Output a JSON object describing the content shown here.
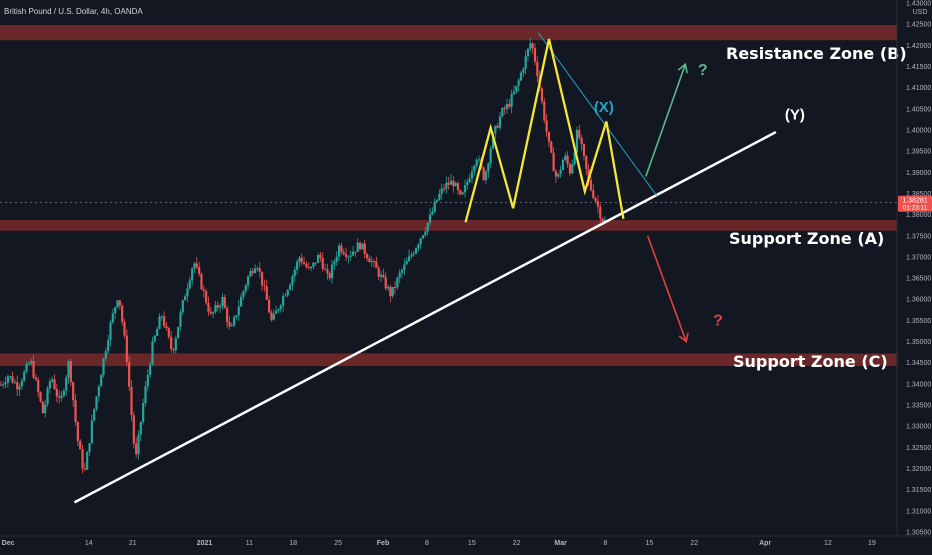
{
  "chart_data": {
    "type": "candlestick",
    "title": "British Pound / U.S. Dollar, 4h, OANDA",
    "y_unit": "USD",
    "ylim": [
      1.305,
      1.43
    ],
    "grid": false,
    "colors": {
      "background": "#131722",
      "up_candle": "#26a69a",
      "down_candle": "#ef5350",
      "zone_fill": "#7a2a2a",
      "pattern_line": "#f5e63a",
      "trend_line": "#ffffff",
      "wedge_line": "#22a5c8",
      "arrow_up": "#5ab88a",
      "arrow_down": "#e0413b",
      "price_tag": "#ef5350"
    },
    "y_ticks": [
      "1.43000",
      "1.42500",
      "1.42000",
      "1.41500",
      "1.41000",
      "1.40500",
      "1.40000",
      "1.39500",
      "1.39000",
      "1.38500",
      "1.38000",
      "1.37500",
      "1.37000",
      "1.36500",
      "1.36000",
      "1.35500",
      "1.35000",
      "1.34500",
      "1.34000",
      "1.33500",
      "1.33000",
      "1.32500",
      "1.32000",
      "1.31500",
      "1.31000",
      "1.30500"
    ],
    "y_tick_values": [
      1.43,
      1.425,
      1.42,
      1.415,
      1.41,
      1.405,
      1.4,
      1.395,
      1.39,
      1.385,
      1.38,
      1.375,
      1.37,
      1.365,
      1.36,
      1.355,
      1.35,
      1.345,
      1.34,
      1.335,
      1.33,
      1.325,
      1.32,
      1.315,
      1.31,
      1.305
    ],
    "x_ticks": [
      "Dec",
      "14",
      "21",
      "2021",
      "11",
      "18",
      "25",
      "Feb",
      "8",
      "15",
      "22",
      "Mar",
      "8",
      "15",
      "22",
      "Apr",
      "12",
      "19"
    ],
    "x_tick_pos": [
      0.009,
      0.099,
      0.148,
      0.228,
      0.278,
      0.327,
      0.377,
      0.427,
      0.476,
      0.526,
      0.576,
      0.625,
      0.675,
      0.724,
      0.774,
      0.853,
      0.923,
      0.972
    ],
    "current_price": "1.38281",
    "countdown": "01:23:11",
    "zones": [
      {
        "name": "Resistance Zone (B)",
        "from": 1.4212,
        "to": 1.4248
      },
      {
        "name": "Support Zone (A)",
        "from": 1.3762,
        "to": 1.3787
      },
      {
        "name": "Support Zone (C)",
        "from": 1.3442,
        "to": 1.3472
      }
    ],
    "annotations": {
      "wave_x": "(X)",
      "wave_y": "(Y)",
      "q_up": "?",
      "q_down": "?"
    },
    "price_path": [
      [
        0.0,
        1.3395
      ],
      [
        0.009,
        1.342
      ],
      [
        0.02,
        1.3395
      ],
      [
        0.034,
        1.3455
      ],
      [
        0.048,
        1.333
      ],
      [
        0.057,
        1.342
      ],
      [
        0.067,
        1.335
      ],
      [
        0.077,
        1.3455
      ],
      [
        0.086,
        1.3275
      ],
      [
        0.094,
        1.3185
      ],
      [
        0.104,
        1.333
      ],
      [
        0.112,
        1.342
      ],
      [
        0.122,
        1.353
      ],
      [
        0.132,
        1.3615
      ],
      [
        0.141,
        1.347
      ],
      [
        0.151,
        1.3215
      ],
      [
        0.16,
        1.336
      ],
      [
        0.17,
        1.349
      ],
      [
        0.18,
        1.3565
      ],
      [
        0.192,
        1.3475
      ],
      [
        0.206,
        1.361
      ],
      [
        0.216,
        1.369
      ],
      [
        0.225,
        1.363
      ],
      [
        0.235,
        1.356
      ],
      [
        0.248,
        1.36
      ],
      [
        0.257,
        1.352
      ],
      [
        0.266,
        1.3585
      ],
      [
        0.276,
        1.365
      ],
      [
        0.286,
        1.369
      ],
      [
        0.296,
        1.361
      ],
      [
        0.303,
        1.3545
      ],
      [
        0.312,
        1.359
      ],
      [
        0.323,
        1.364
      ],
      [
        0.334,
        1.37
      ],
      [
        0.345,
        1.3665
      ],
      [
        0.356,
        1.3705
      ],
      [
        0.366,
        1.3645
      ],
      [
        0.378,
        1.3725
      ],
      [
        0.389,
        1.3705
      ],
      [
        0.401,
        1.373
      ],
      [
        0.414,
        1.369
      ],
      [
        0.424,
        1.3655
      ],
      [
        0.436,
        1.361
      ],
      [
        0.446,
        1.366
      ],
      [
        0.456,
        1.3695
      ],
      [
        0.466,
        1.3735
      ],
      [
        0.478,
        1.3785
      ],
      [
        0.488,
        1.384
      ],
      [
        0.496,
        1.3868
      ],
      [
        0.505,
        1.3878
      ],
      [
        0.514,
        1.3835
      ],
      [
        0.523,
        1.389
      ],
      [
        0.531,
        1.394
      ],
      [
        0.54,
        1.3885
      ],
      [
        0.549,
        1.398
      ],
      [
        0.559,
        1.404
      ],
      [
        0.567,
        1.406
      ],
      [
        0.576,
        1.41
      ],
      [
        0.586,
        1.417
      ],
      [
        0.592,
        1.421
      ],
      [
        0.598,
        1.415
      ],
      [
        0.606,
        1.404
      ],
      [
        0.613,
        1.395
      ],
      [
        0.621,
        1.388
      ],
      [
        0.629,
        1.394
      ],
      [
        0.636,
        1.39
      ],
      [
        0.644,
        1.4
      ],
      [
        0.651,
        1.393
      ],
      [
        0.657,
        1.387
      ],
      [
        0.664,
        1.3835
      ],
      [
        0.671,
        1.379
      ],
      [
        0.677,
        1.378
      ]
    ]
  }
}
